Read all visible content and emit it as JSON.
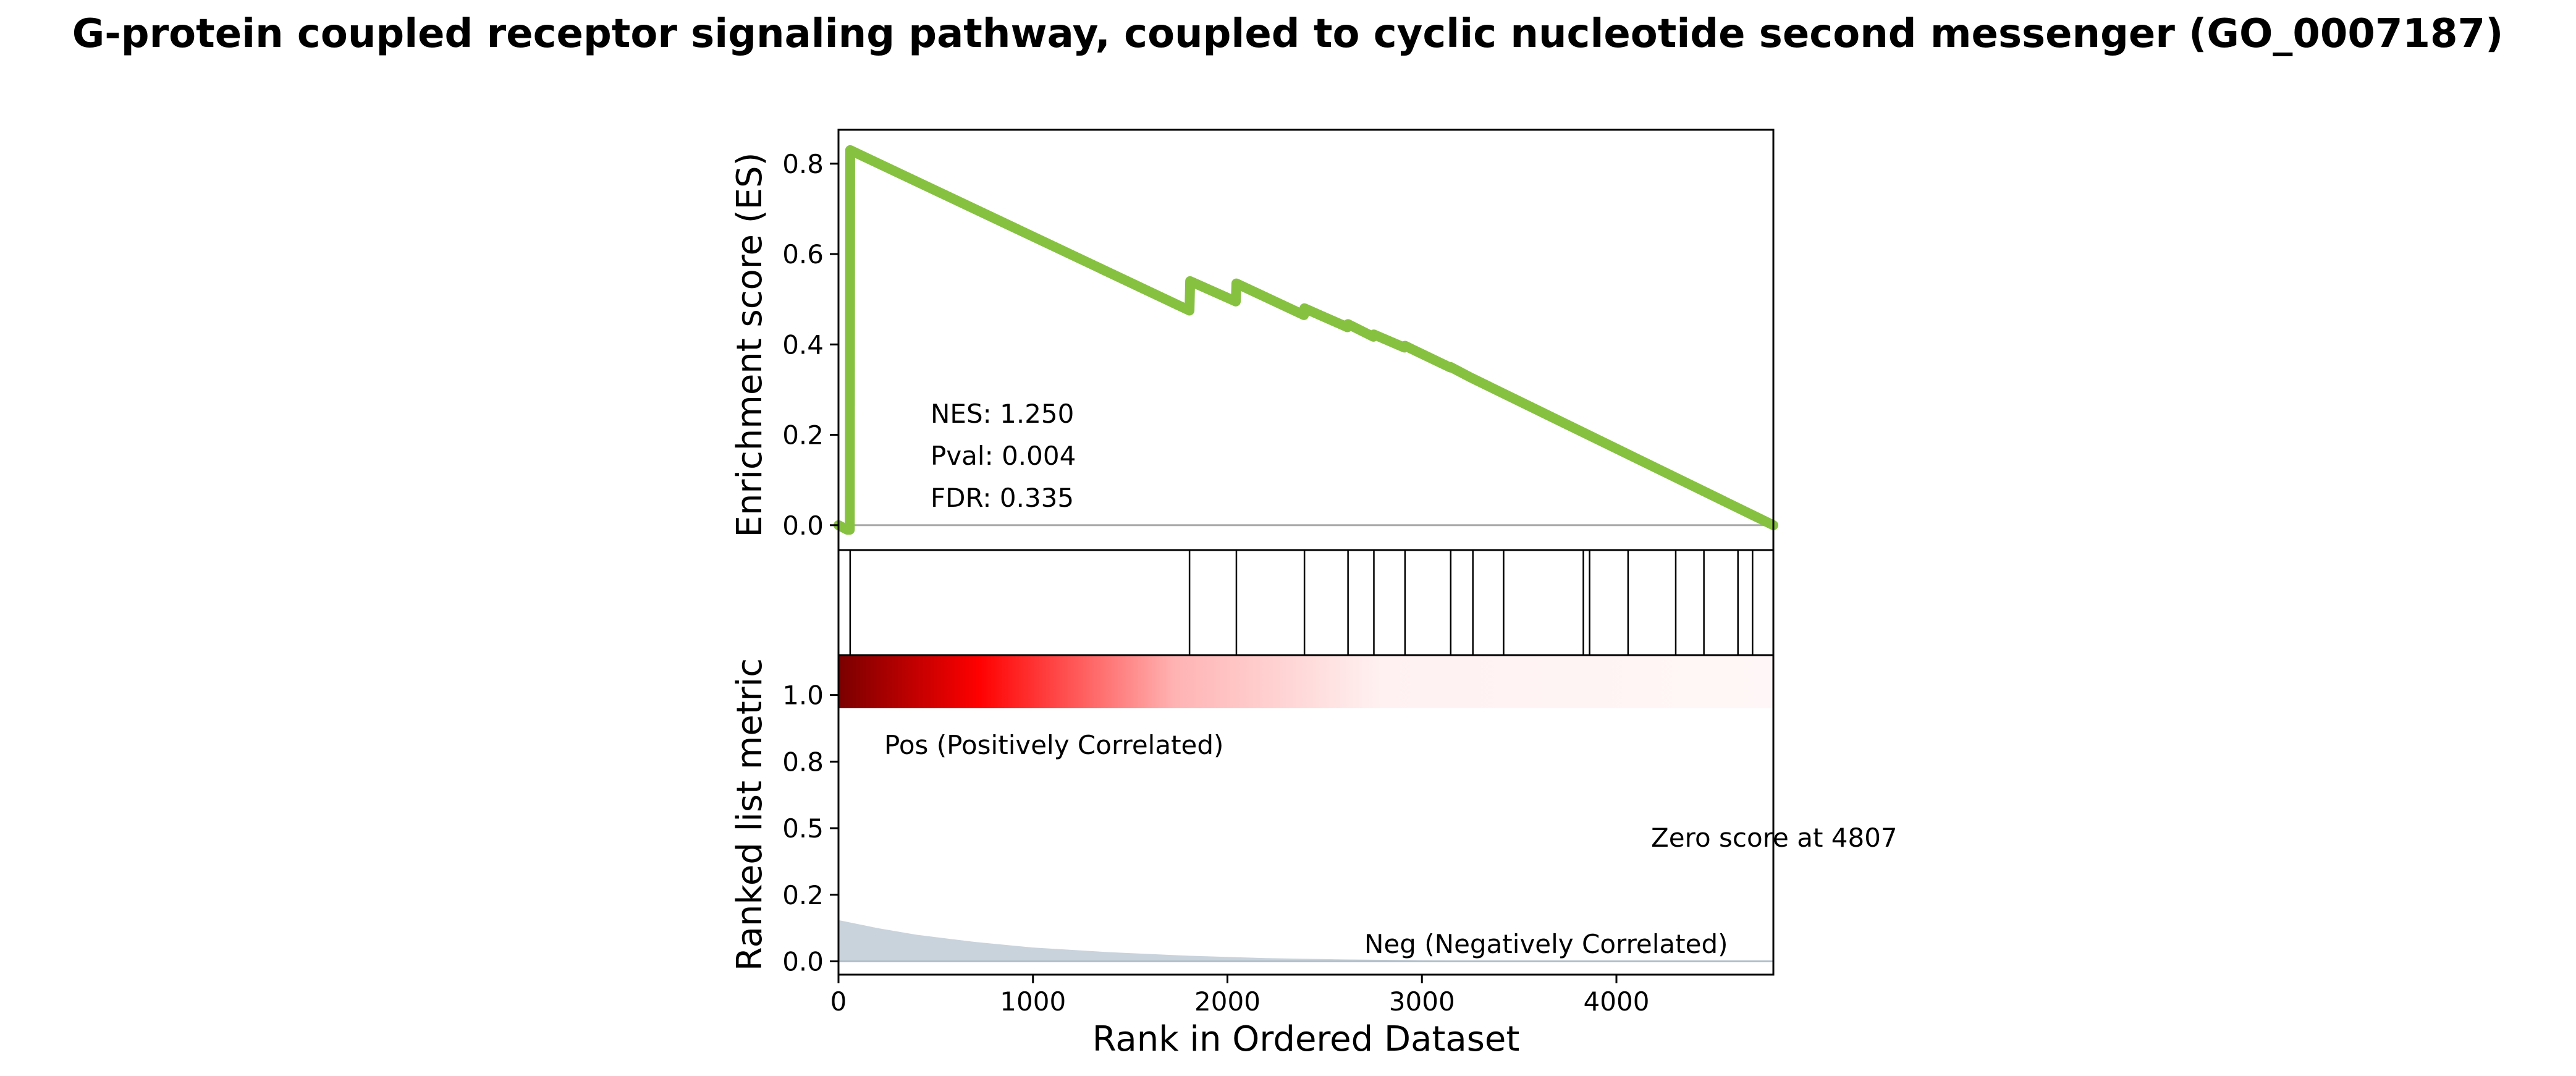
{
  "title": "G-protein coupled receptor signaling pathway, coupled to cyclic nucleotide second messenger (GO_0007187)",
  "colors": {
    "es_line": "#86c140",
    "zero_line": "#aaaaaa",
    "frame": "#000000",
    "hit_line": "#000000",
    "pos_label": "#e8000b",
    "neg_label": "#0000dd",
    "metric_fill": "#c9d3dc",
    "heat_dark": "#7a0000",
    "heat_red": "#ff0000",
    "heat_pale": "#fff7f7"
  },
  "chart_data": {
    "type": "line",
    "panels": {
      "es": {
        "ylabel": "Enrichment score (ES)",
        "xlim": [
          0,
          4807
        ],
        "ylim": [
          -0.055,
          0.875
        ],
        "yticks": [
          0.0,
          0.2,
          0.4,
          0.6,
          0.8
        ],
        "ytick_labels": [
          "0.0",
          "0.2",
          "0.4",
          "0.6",
          "0.8"
        ],
        "points": [
          [
            0,
            0.0
          ],
          [
            45,
            -0.01
          ],
          [
            58,
            -0.01
          ],
          [
            60,
            0.83
          ],
          [
            1805,
            0.475
          ],
          [
            1808,
            0.54
          ],
          [
            2043,
            0.495
          ],
          [
            2046,
            0.535
          ],
          [
            2393,
            0.465
          ],
          [
            2396,
            0.48
          ],
          [
            2617,
            0.438
          ],
          [
            2620,
            0.445
          ],
          [
            2750,
            0.417
          ],
          [
            2753,
            0.422
          ],
          [
            2910,
            0.393
          ],
          [
            2913,
            0.397
          ],
          [
            3145,
            0.349
          ],
          [
            3148,
            0.35
          ],
          [
            3250,
            0.327
          ],
          [
            4807,
            0.0
          ]
        ],
        "stats": {
          "nes": "NES: 1.250",
          "pval": "Pval: 0.004",
          "fdr": "FDR: 0.335"
        }
      },
      "hits": {
        "positions": [
          60,
          1805,
          2046,
          2396,
          2620,
          2753,
          2913,
          3148,
          3262,
          3420,
          3830,
          3862,
          4060,
          4305,
          4450,
          4625,
          4700
        ]
      },
      "metric": {
        "ylabel": "Ranked list metric",
        "xlabel": "Rank in Ordered Dataset",
        "xlim": [
          0,
          4807
        ],
        "ylim": [
          -0.05,
          1.15
        ],
        "xticks": [
          0,
          1000,
          2000,
          3000,
          4000
        ],
        "xtick_labels": [
          "0",
          "1000",
          "2000",
          "3000",
          "4000"
        ],
        "yticks": [
          0.0,
          0.25,
          0.5,
          0.75,
          1.0
        ],
        "ytick_labels": [
          "0.0",
          "0.2",
          "0.5",
          "0.8",
          "1.0"
        ],
        "curve": [
          [
            0,
            0.155
          ],
          [
            200,
            0.125
          ],
          [
            400,
            0.1
          ],
          [
            700,
            0.073
          ],
          [
            1000,
            0.052
          ],
          [
            1400,
            0.034
          ],
          [
            1800,
            0.021
          ],
          [
            2200,
            0.012
          ],
          [
            2600,
            0.007
          ],
          [
            3000,
            0.004
          ],
          [
            3500,
            0.002
          ],
          [
            4000,
            0.001
          ],
          [
            4807,
            0.0
          ]
        ],
        "pos_label": "Pos (Positively Correlated)",
        "neg_label": "Neg (Negatively Correlated)",
        "zero_label": "Zero score at 4807"
      }
    }
  }
}
